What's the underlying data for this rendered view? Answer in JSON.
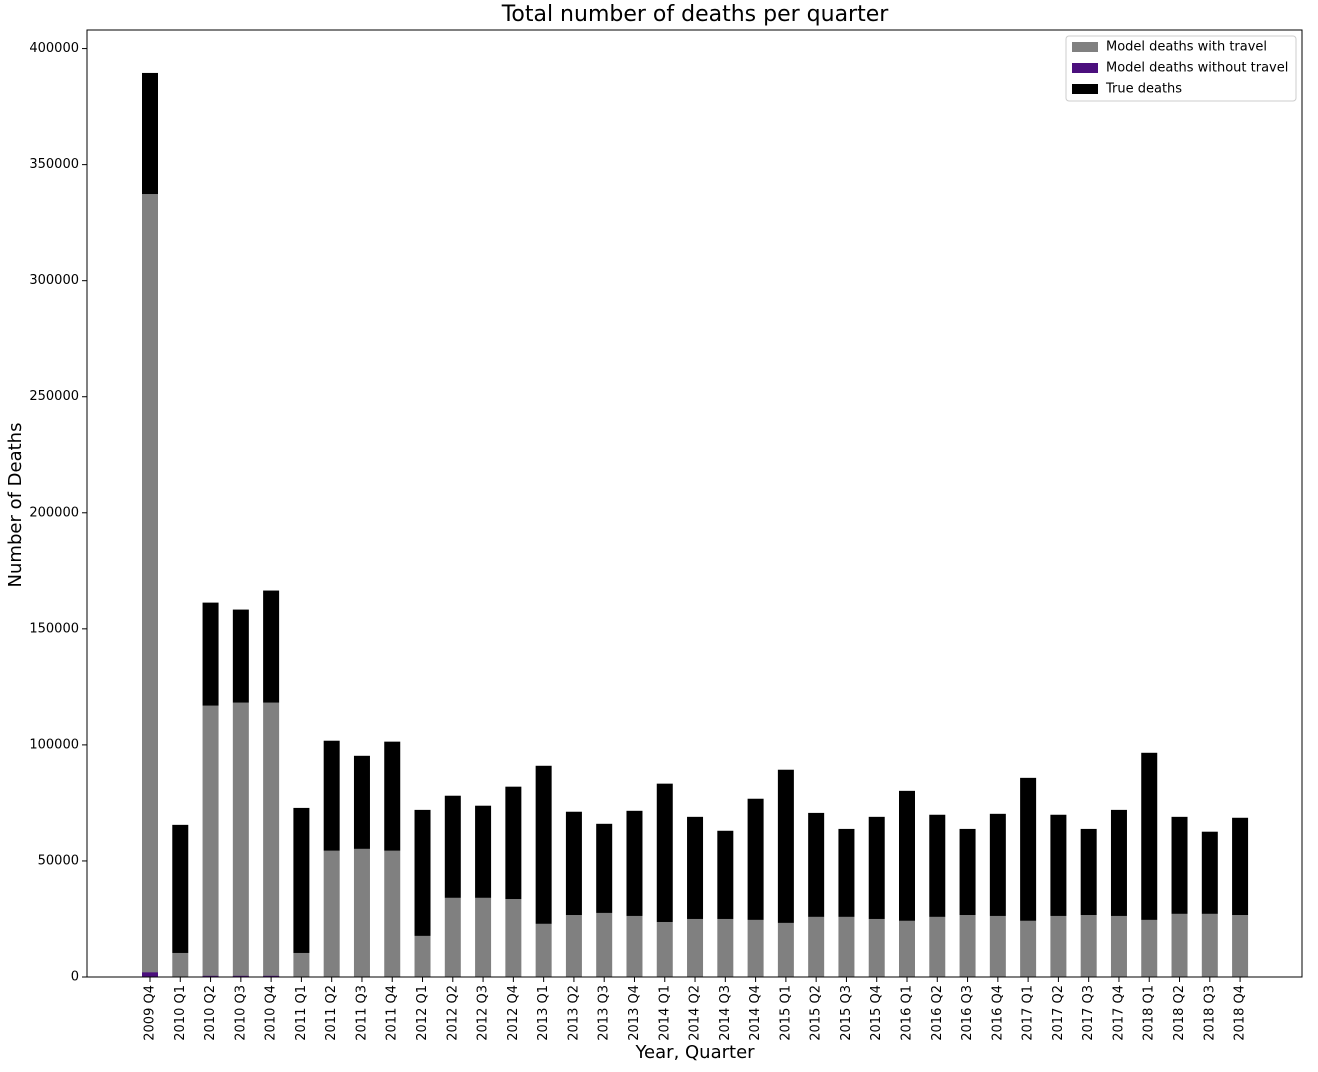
{
  "chart_data": {
    "type": "bar",
    "title": "Total number of deaths per quarter",
    "xlabel": "Year, Quarter",
    "ylabel": "Number of Deaths",
    "categories": [
      "2009 Q4",
      "2010 Q1",
      "2010 Q2",
      "2010 Q3",
      "2010 Q4",
      "2011 Q1",
      "2011 Q2",
      "2011 Q3",
      "2011 Q4",
      "2012 Q1",
      "2012 Q2",
      "2012 Q3",
      "2012 Q4",
      "2013 Q1",
      "2013 Q2",
      "2013 Q3",
      "2013 Q4",
      "2014 Q1",
      "2014 Q2",
      "2014 Q3",
      "2014 Q4",
      "2015 Q1",
      "2015 Q2",
      "2015 Q3",
      "2015 Q4",
      "2016 Q1",
      "2016 Q2",
      "2016 Q3",
      "2016 Q4",
      "2017 Q1",
      "2017 Q2",
      "2017 Q3",
      "2017 Q4",
      "2018 Q1",
      "2018 Q2",
      "2018 Q3",
      "2018 Q4"
    ],
    "series": [
      {
        "name": "Model deaths with travel",
        "color": "#808080",
        "values": [
          337300,
          10350,
          116900,
          118200,
          118200,
          10350,
          54400,
          55200,
          54400,
          17700,
          34100,
          34100,
          33600,
          22900,
          26700,
          27600,
          26300,
          23700,
          25000,
          25000,
          24600,
          23300,
          25900,
          25900,
          25000,
          24200,
          25900,
          26700,
          26300,
          24200,
          26300,
          26700,
          26300,
          24600,
          27200,
          27200,
          26700
        ]
      },
      {
        "name": "Model deaths without travel",
        "color": "#4b0f7d",
        "values": [
          2000,
          200,
          500,
          500,
          500,
          0,
          0,
          0,
          0,
          0,
          0,
          0,
          0,
          0,
          0,
          0,
          0,
          0,
          0,
          0,
          0,
          0,
          0,
          0,
          0,
          0,
          0,
          0,
          0,
          0,
          0,
          0,
          0,
          0,
          0,
          0,
          0
        ]
      },
      {
        "name": "True deaths",
        "color": "#000000",
        "values": [
          52200,
          55200,
          44400,
          40100,
          48300,
          62500,
          47400,
          40100,
          47000,
          54300,
          44000,
          39700,
          48400,
          68100,
          44500,
          38400,
          45300,
          59600,
          44000,
          38000,
          52200,
          66000,
          44800,
          37900,
          44000,
          56000,
          44000,
          37100,
          44000,
          61600,
          43600,
          37100,
          45700,
          72000,
          41800,
          35400,
          41900
        ]
      }
    ],
    "ylim": [
      0,
      408000
    ],
    "yticks": [
      0,
      50000,
      100000,
      150000,
      200000,
      250000,
      300000,
      350000,
      400000
    ],
    "legend": "upper right"
  }
}
